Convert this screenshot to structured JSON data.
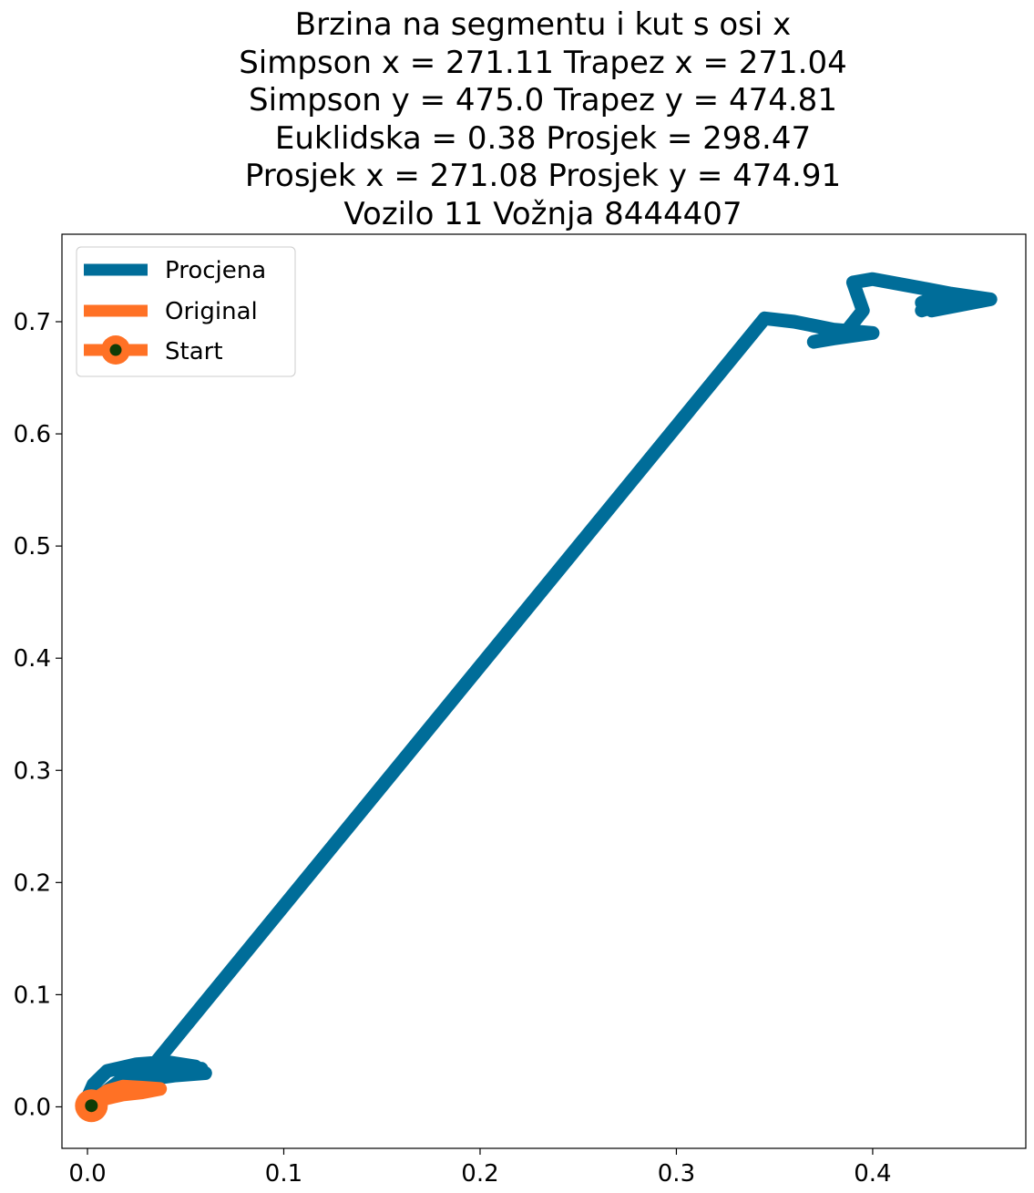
{
  "chart_data": {
    "type": "line",
    "title_lines": [
      "Brzina na segmentu i kut s osi x",
      "Simpson x = 271.11 Trapez x = 271.04",
      "Simpson y = 475.0 Trapez y = 474.81",
      "Euklidska = 0.38 Prosjek = 298.47",
      "Prosjek x = 271.08 Prosjek y = 474.91",
      "Vozilo 11 Vožnja 8444407"
    ],
    "xlabel": "",
    "ylabel": "",
    "xlim": [
      -0.013,
      0.478
    ],
    "ylim": [
      -0.037,
      0.778
    ],
    "xticks": [
      0.0,
      0.1,
      0.2,
      0.3,
      0.4
    ],
    "xtick_labels": [
      "0.0",
      "0.1",
      "0.2",
      "0.3",
      "0.4"
    ],
    "yticks": [
      0.0,
      0.1,
      0.2,
      0.3,
      0.4,
      0.5,
      0.6,
      0.7
    ],
    "ytick_labels": [
      "0.0",
      "0.1",
      "0.2",
      "0.3",
      "0.4",
      "0.5",
      "0.6",
      "0.7"
    ],
    "grid": false,
    "legend_position": "top-left",
    "series": [
      {
        "name": "Procjena",
        "color": "#006d99",
        "x": [
          -0.002,
          0.003,
          0.01,
          0.025,
          0.04,
          0.055,
          0.06,
          0.045,
          0.02,
          0.035,
          0.058,
          0.04,
          0.015,
          0.005,
          0.018,
          0.035,
          0.345,
          0.36,
          0.38,
          0.4,
          0.38,
          0.37,
          0.385,
          0.395,
          0.39,
          0.4,
          0.425,
          0.44,
          0.46,
          0.43,
          0.425,
          0.44,
          0.45,
          0.43,
          0.425
        ],
        "y": [
          0.0,
          0.02,
          0.032,
          0.038,
          0.04,
          0.036,
          0.03,
          0.028,
          0.022,
          0.034,
          0.034,
          0.031,
          0.018,
          0.008,
          0.025,
          0.04,
          0.703,
          0.7,
          0.693,
          0.69,
          0.685,
          0.682,
          0.688,
          0.71,
          0.735,
          0.738,
          0.73,
          0.725,
          0.72,
          0.71,
          0.717,
          0.725,
          0.722,
          0.713,
          0.71
        ]
      },
      {
        "name": "Original",
        "color": "#ff7125",
        "x": [
          0.0,
          0.005,
          0.01,
          0.018,
          0.028,
          0.037,
          0.028,
          0.018,
          0.008,
          0.003,
          0.0
        ],
        "y": [
          0.0,
          0.008,
          0.014,
          0.018,
          0.017,
          0.016,
          0.013,
          0.011,
          0.007,
          0.003,
          0.0
        ]
      },
      {
        "name": "Start",
        "color": "#ff7125",
        "marker_face_color": "#0f3c06",
        "x": [
          0.002
        ],
        "y": [
          0.001
        ]
      }
    ]
  }
}
